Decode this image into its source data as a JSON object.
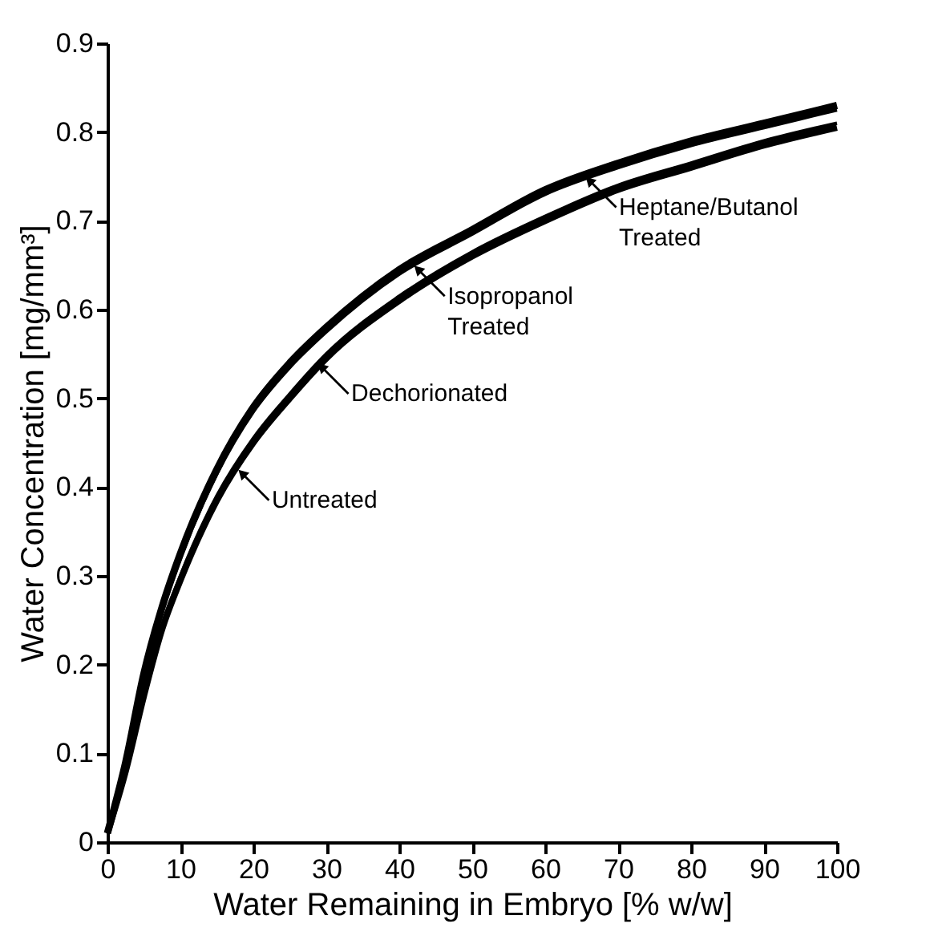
{
  "chart_data": {
    "type": "line",
    "xlabel": "Water Remaining in Embryo [% w/w]",
    "ylabel": "Water Concentration [mg/mm³]",
    "x": [
      0,
      2.5,
      5,
      7.5,
      10,
      15,
      20,
      25,
      30,
      40,
      50,
      60,
      70,
      80,
      90,
      100
    ],
    "series": [
      {
        "color": "#000000",
        "values": [
          0.01,
          0.09,
          0.19,
          0.265,
          0.325,
          0.42,
          0.49,
          0.54,
          0.58,
          0.645,
          0.69,
          0.735,
          0.765,
          0.79,
          0.81,
          0.83
        ]
      },
      {
        "color": "#000000",
        "values": [
          0.01,
          0.09,
          0.185,
          0.26,
          0.32,
          0.415,
          0.485,
          0.535,
          0.575,
          0.64,
          0.685,
          0.73,
          0.76,
          0.785,
          0.805,
          0.825
        ]
      },
      {
        "color": "#000000",
        "values": [
          0.01,
          0.085,
          0.17,
          0.245,
          0.3,
          0.39,
          0.455,
          0.505,
          0.55,
          0.615,
          0.665,
          0.705,
          0.74,
          0.765,
          0.79,
          0.81
        ]
      },
      {
        "color": "#000000",
        "values": [
          0.01,
          0.08,
          0.165,
          0.24,
          0.295,
          0.385,
          0.45,
          0.5,
          0.545,
          0.61,
          0.66,
          0.7,
          0.735,
          0.76,
          0.785,
          0.805
        ]
      }
    ],
    "annotations": [
      {
        "text": "Heptane/Butanol\nTreated",
        "x": 65.5,
        "y": 0.75
      },
      {
        "text": "Isopropanol\nTreated",
        "x": 42,
        "y": 0.65
      },
      {
        "text": "Dechorionated",
        "x": 28.8,
        "y": 0.54
      },
      {
        "text": "Untreated",
        "x": 17.9,
        "y": 0.42
      }
    ],
    "xlim": [
      0,
      100
    ],
    "ylim": [
      0,
      0.9
    ],
    "xticks": [
      0,
      10,
      20,
      30,
      40,
      50,
      60,
      70,
      80,
      90,
      100
    ],
    "yticks": [
      0,
      0.1,
      0.2,
      0.3,
      0.4,
      0.5,
      0.6,
      0.7,
      0.8,
      0.9
    ],
    "grid": false,
    "legend": false,
    "marker": "none",
    "line_style": "solid"
  }
}
